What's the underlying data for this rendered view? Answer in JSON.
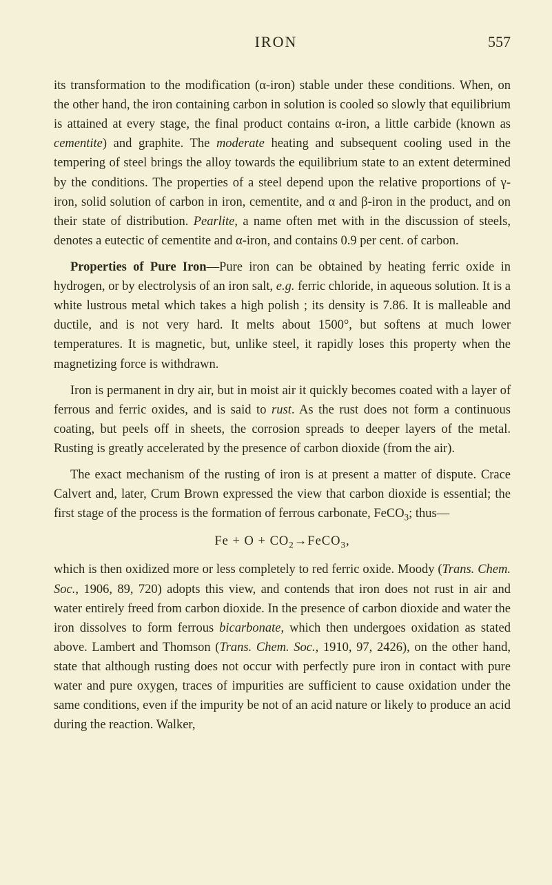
{
  "header": {
    "title": "IRON",
    "pageNumber": "557"
  },
  "paragraphs": {
    "p1_a": "its transformation to the modification (",
    "p1_alpha1": "α",
    "p1_b": "-iron) stable under these conditions. When, on the other hand, the iron containing carbon in solution is cooled so slowly that equilibrium is attained at every stage, the final product contains ",
    "p1_alpha2": "α",
    "p1_c": "-iron, a little carbide (known as ",
    "p1_cementite": "cementite",
    "p1_d": ") and graphite. The ",
    "p1_moderate": "moderate",
    "p1_e": " heating and subsequent cooling used in the tempering of steel brings the alloy towards the equilibrium state to an extent determined by the conditions. The properties of a steel depend upon the relative proportions of ",
    "p1_gamma": "γ",
    "p1_f": "-iron, solid solution of carbon in iron, cementite, and ",
    "p1_alpha3": "α",
    "p1_g": " and ",
    "p1_beta": "β",
    "p1_h": "-iron in the product, and on their state of distribution. ",
    "p1_pearlite": "Pearlite",
    "p1_i": ", a name often met with in the discussion of steels, denotes a eutectic of cementite and ",
    "p1_alpha4": "α",
    "p1_j": "-iron, and contains 0.9 per cent. of carbon.",
    "p2_lead": "Properties of Pure Iron",
    "p2_a": "—Pure iron can be obtained by heating ferric oxide in hydrogen, or by electrolysis of an iron salt, ",
    "p2_eg": "e.g.",
    "p2_b": " ferric chloride, in aqueous solution. It is a white lustrous metal which takes a high polish ; its density is 7.86. It is malleable and ductile, and is not very hard. It melts about 1500°, but softens at much lower temperatures. It is magnetic, but, unlike steel, it rapidly loses this property when the magnetizing force is withdrawn.",
    "p3_a": "Iron is permanent in dry air, but in moist air it quickly becomes coated with a layer of ferrous and ferric oxides, and is said to ",
    "p3_rust": "rust",
    "p3_b": ". As the rust does not form a continuous coating, but peels off in sheets, the corrosion spreads to deeper layers of the metal. Rusting is greatly accelerated by the presence of carbon dioxide (from the air).",
    "p4_a": "The exact mechanism of the rusting of iron is at present a matter of dispute. Crace Calvert and, later, Crum Brown expressed the view that carbon dioxide is essential; the first stage of the process is the formation of ferrous carbonate, FeCO",
    "p4_sub3": "3",
    "p4_b": "; thus—",
    "formula_a": "Fe + O + CO",
    "formula_sub2": "2",
    "formula_b": "→FeCO",
    "formula_sub3": "3",
    "formula_c": ",",
    "p5_a": "which is then oxidized more or less completely to red ferric oxide. Moody (",
    "p5_trans1": "Trans. Chem. Soc.",
    "p5_b": ", 1906, 89, 720) adopts this view, and contends that iron does not rust in air and water entirely freed from carbon dioxide. In the presence of carbon dioxide and water the iron dissolves to form ferrous ",
    "p5_bicarb": "bicarbonate",
    "p5_c": ", which then undergoes oxidation as stated above. Lambert and Thomson (",
    "p5_trans2": "Trans. Chem. Soc.",
    "p5_d": ", 1910, 97, 2426), on the other hand, state that although rusting does not occur with perfectly pure iron in contact with pure water and pure oxygen, traces of impurities are sufficient to cause oxidation under the same conditions, even if the impurity be not of an acid nature or likely to produce an acid during the reaction. Walker,"
  }
}
